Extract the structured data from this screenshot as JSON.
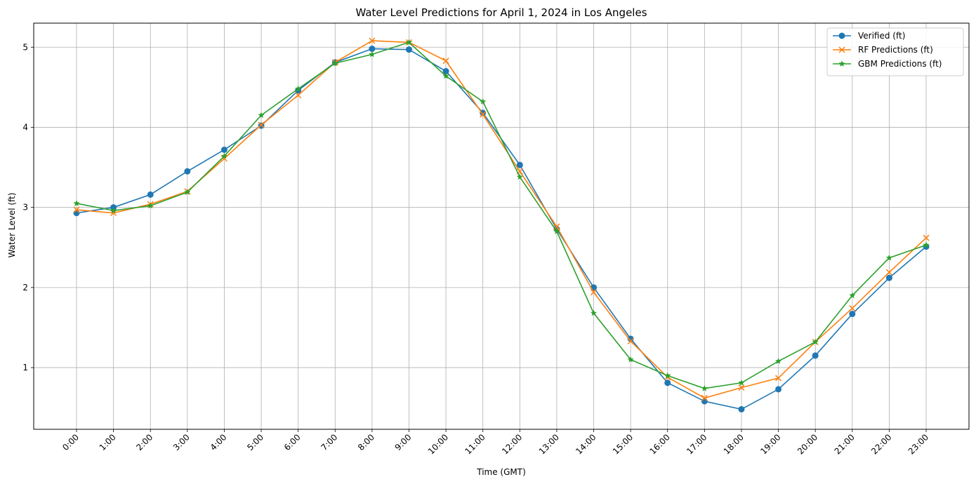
{
  "chart_data": {
    "type": "line",
    "title": "Water Level Predictions for April 1, 2024 in Los Angeles",
    "xlabel": "Time (GMT)",
    "ylabel": "Water Level (ft)",
    "categories": [
      "0:00",
      "1:00",
      "2:00",
      "3:00",
      "4:00",
      "5:00",
      "6:00",
      "7:00",
      "8:00",
      "9:00",
      "10:00",
      "11:00",
      "12:00",
      "13:00",
      "14:00",
      "15:00",
      "16:00",
      "17:00",
      "18:00",
      "19:00",
      "20:00",
      "21:00",
      "22:00",
      "23:00"
    ],
    "ylim": [
      0.23,
      5.3
    ],
    "yticks": [
      "1",
      "2",
      "3",
      "4",
      "5"
    ],
    "grid": true,
    "legend_position": "top-right",
    "series": [
      {
        "name": "Verified (ft)",
        "color": "#1f77b4",
        "marker": "circle",
        "values": [
          2.93,
          3.0,
          3.16,
          3.45,
          3.72,
          4.02,
          4.46,
          4.81,
          4.98,
          4.97,
          4.7,
          4.18,
          3.53,
          2.73,
          2.0,
          1.36,
          0.81,
          0.58,
          0.48,
          0.73,
          1.15,
          1.67,
          2.12,
          2.51
        ]
      },
      {
        "name": "RF Predictions (ft)",
        "color": "#ff7f0e",
        "marker": "x",
        "values": [
          2.97,
          2.93,
          3.04,
          3.2,
          3.61,
          4.03,
          4.4,
          4.81,
          5.08,
          5.06,
          4.83,
          4.16,
          3.45,
          2.76,
          1.94,
          1.33,
          0.88,
          0.62,
          0.75,
          0.87,
          1.32,
          1.74,
          2.19,
          2.62
        ]
      },
      {
        "name": "GBM Predictions (ft)",
        "color": "#2ca02c",
        "marker": "star",
        "values": [
          3.05,
          2.96,
          3.02,
          3.19,
          3.64,
          4.15,
          4.48,
          4.8,
          4.91,
          5.06,
          4.64,
          4.32,
          3.38,
          2.7,
          1.68,
          1.1,
          0.9,
          0.74,
          0.81,
          1.08,
          1.32,
          1.9,
          2.37,
          2.53
        ]
      }
    ]
  }
}
